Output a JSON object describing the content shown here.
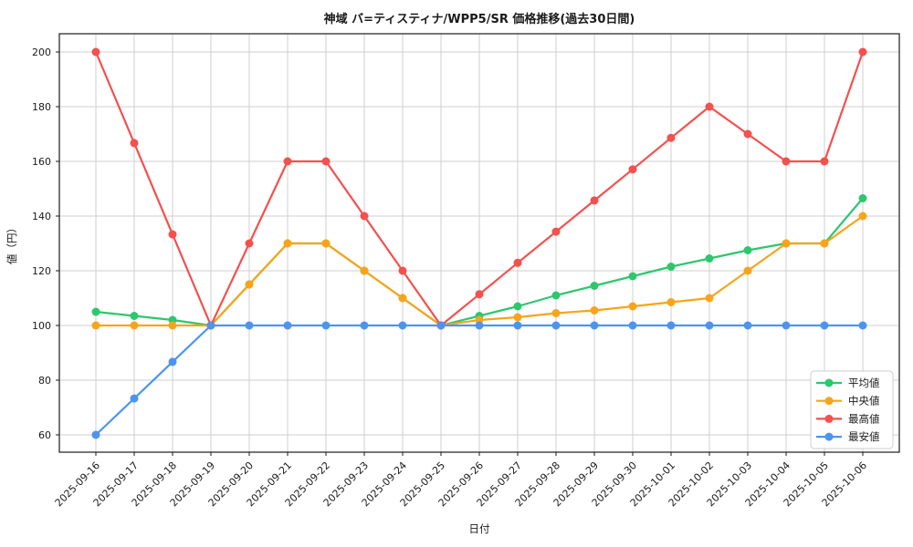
{
  "chart_data": {
    "type": "line",
    "title": "神域 バ=ティスティナ/WPP5/SR 価格推移(過去30日間)",
    "xlabel": "日付",
    "ylabel": "値（円）",
    "grid": true,
    "legend_position": "lower right",
    "tick_rotation_deg": 45,
    "ylim": [
      53.5,
      206.5
    ],
    "y_ticks": [
      60,
      80,
      100,
      120,
      140,
      160,
      180,
      200
    ],
    "categories": [
      "2025-09-16",
      "2025-09-17",
      "2025-09-18",
      "2025-09-19",
      "2025-09-20",
      "2025-09-21",
      "2025-09-22",
      "2025-09-23",
      "2025-09-24",
      "2025-09-25",
      "2025-09-26",
      "2025-09-27",
      "2025-09-28",
      "2025-09-29",
      "2025-09-30",
      "2025-10-01",
      "2025-10-02",
      "2025-10-03",
      "2025-10-04",
      "2025-10-05",
      "2025-10-06"
    ],
    "series": [
      {
        "key": "average",
        "name": "平均値",
        "color": "#2dc76d",
        "values": [
          105,
          103.5,
          102,
          100,
          115,
          130,
          130,
          120,
          110,
          100,
          103.5,
          107,
          111,
          114.5,
          118,
          121.5,
          124.5,
          127.5,
          130,
          130,
          146.5
        ]
      },
      {
        "key": "median",
        "name": "中央値",
        "color": "#f8a41b",
        "values": [
          100,
          100,
          100,
          100,
          115,
          130,
          130,
          120,
          110,
          100,
          102,
          103,
          104.5,
          105.5,
          107,
          108.5,
          110,
          120,
          130,
          130,
          140
        ]
      },
      {
        "key": "max",
        "name": "最高値",
        "color": "#f4504e",
        "values": [
          200,
          166.7,
          133.3,
          100,
          130,
          160,
          160,
          140,
          120,
          100,
          111.4,
          122.9,
          134.3,
          145.7,
          157.1,
          168.6,
          180,
          170,
          160,
          160,
          200
        ]
      },
      {
        "key": "min",
        "name": "最安値",
        "color": "#4d94f1",
        "values": [
          60,
          73.3,
          86.7,
          100,
          100,
          100,
          100,
          100,
          100,
          100,
          100,
          100,
          100,
          100,
          100,
          100,
          100,
          100,
          100,
          100,
          100
        ]
      }
    ],
    "colors": {
      "grid": "#cfcfcf",
      "axis": "#1a1a1a",
      "legend_border": "#cccccc",
      "background": "#ffffff"
    }
  }
}
